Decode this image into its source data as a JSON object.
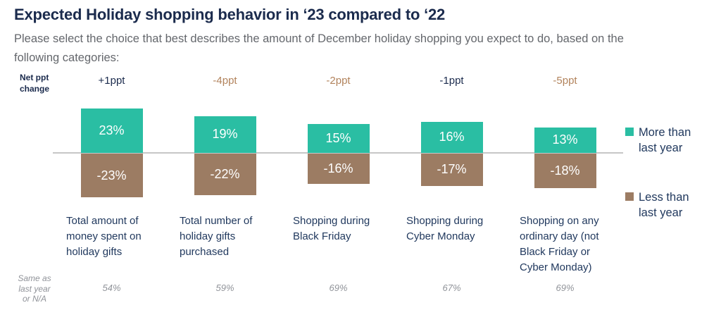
{
  "header": {
    "title": "Expected Holiday shopping behavior in ‘23 compared to ‘22",
    "subtitle": "Please select the choice that best describes the amount of December holiday shopping you expect to do, based on the following categories:"
  },
  "labels": {
    "net_ppt": "Net ppt change",
    "same_as": "Same as last year or N/A"
  },
  "colors": {
    "navy": "#1b2b4d",
    "teal": "#2abea3",
    "brown": "#9c7c63",
    "tan_text": "#b2835c",
    "subtitle_gray": "#64676c",
    "muted_gray": "#909399",
    "axis_line": "#c7c7c7"
  },
  "legend": [
    {
      "label": "More than last year",
      "color": "#2abea3"
    },
    {
      "label": "Less than last year",
      "color": "#9c7c63"
    }
  ],
  "chart_data": {
    "type": "bar",
    "subtype": "diverging-bar",
    "title": "Expected Holiday shopping behavior in ‘23 compared to ‘22",
    "categories": [
      "Total amount of money spent on holiday gifts",
      "Total number of holiday gifts purchased",
      "Shopping during Black Friday",
      "Shopping during Cyber Monday",
      "Shopping on any ordinary day (not Black Friday or Cyber Monday)"
    ],
    "series": [
      {
        "name": "More than last year",
        "color": "#2abea3",
        "values": [
          23,
          19,
          15,
          16,
          13
        ],
        "labels": [
          "23%",
          "19%",
          "15%",
          "16%",
          "13%"
        ]
      },
      {
        "name": "Less than last year",
        "color": "#9c7c63",
        "values": [
          -23,
          -22,
          -16,
          -17,
          -18
        ],
        "labels": [
          "-23%",
          "-22%",
          "-16%",
          "-17%",
          "-18%"
        ]
      }
    ],
    "net_ppt_change": [
      "+1ppt",
      "-4ppt",
      "-2ppt",
      "-1ppt",
      "-5ppt"
    ],
    "net_ppt_colors": [
      "#1b2b4d",
      "#b2835c",
      "#b2835c",
      "#1b2b4d",
      "#b2835c"
    ],
    "same_as_values": [
      "54%",
      "59%",
      "69%",
      "67%",
      "69%"
    ],
    "ylim": [
      -25,
      25
    ],
    "grid": false,
    "zero_line": true,
    "legend_position": "right"
  }
}
